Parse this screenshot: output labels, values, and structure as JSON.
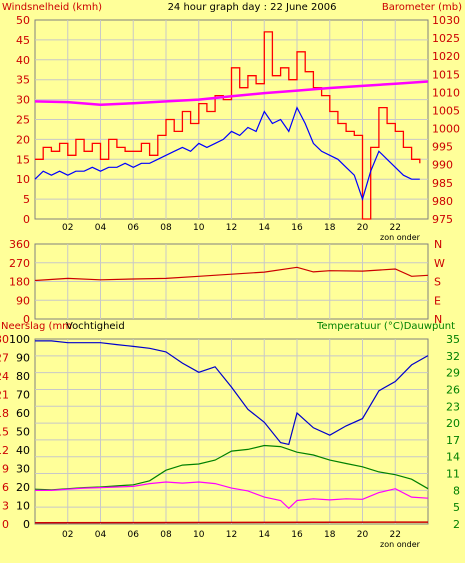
{
  "colors": {
    "background": "#ffff99",
    "plot_border": "#808080",
    "grid": "#c8c8c8",
    "wind_gust": "#ff0000",
    "wind_avg": "#0000ff",
    "barometer": "#ff00ff",
    "direction": "#cc0000",
    "rain": "#cc0000",
    "humidity": "#0000cc",
    "temperature": "#008000",
    "dewpoint": "#ff00ff",
    "label_red": "#cc0000",
    "label_green": "#008000",
    "label_black": "#000000"
  },
  "header": {
    "left_label": "Windsnelheid (kmh)",
    "title": "24 hour graph day : 22 June 2006",
    "right_label": "Barometer (mb)"
  },
  "x_axis": {
    "ticks": [
      "02",
      "04",
      "06",
      "08",
      "10",
      "12",
      "14",
      "16",
      "18",
      "20",
      "22"
    ],
    "note": "zon onder"
  },
  "chart_data": [
    {
      "type": "line",
      "panel": "wind",
      "xlim": [
        0,
        24
      ],
      "y_left": {
        "label": "Windsnelheid (kmh)",
        "ylim": [
          0,
          50
        ],
        "ticks": [
          "0",
          "5",
          "10",
          "15",
          "20",
          "25",
          "30",
          "35",
          "40",
          "45",
          "50"
        ]
      },
      "y_right": {
        "label": "Barometer (mb)",
        "ylim": [
          975,
          1030
        ],
        "ticks": [
          "975",
          "980",
          "985",
          "990",
          "995",
          "1000",
          "1005",
          "1010",
          "1015",
          "1020",
          "1025",
          "1030"
        ]
      },
      "series": [
        {
          "key": "gust",
          "axis": "left",
          "x": [
            0.0,
            0.5,
            1.0,
            1.5,
            2.0,
            2.5,
            3.0,
            3.5,
            4.0,
            4.5,
            5.0,
            5.5,
            6.0,
            6.5,
            7.0,
            7.5,
            8.0,
            8.5,
            9.0,
            9.5,
            10.0,
            10.5,
            11.0,
            11.5,
            12.0,
            12.5,
            13.0,
            13.5,
            14.0,
            14.5,
            15.0,
            15.5,
            16.0,
            16.5,
            17.0,
            17.5,
            18.0,
            18.5,
            19.0,
            19.5,
            20.0,
            20.5,
            21.0,
            21.5,
            22.0,
            22.5,
            23.0,
            23.5
          ],
          "values": [
            15,
            18,
            17,
            19,
            16,
            20,
            17,
            19,
            15,
            20,
            18,
            17,
            17,
            19,
            16,
            21,
            25,
            22,
            27,
            24,
            29,
            27,
            31,
            30,
            38,
            33,
            36,
            34,
            47,
            36,
            38,
            35,
            42,
            37,
            33,
            31,
            27,
            24,
            22,
            21,
            0,
            18,
            28,
            24,
            22,
            18,
            15,
            14
          ]
        },
        {
          "key": "average",
          "axis": "left",
          "x": [
            0.0,
            0.5,
            1.0,
            1.5,
            2.0,
            2.5,
            3.0,
            3.5,
            4.0,
            4.5,
            5.0,
            5.5,
            6.0,
            6.5,
            7.0,
            7.5,
            8.0,
            8.5,
            9.0,
            9.5,
            10.0,
            10.5,
            11.0,
            11.5,
            12.0,
            12.5,
            13.0,
            13.5,
            14.0,
            14.5,
            15.0,
            15.5,
            16.0,
            16.5,
            17.0,
            17.5,
            18.0,
            18.5,
            19.0,
            19.5,
            20.0,
            20.5,
            21.0,
            21.5,
            22.0,
            22.5,
            23.0,
            23.5
          ],
          "values": [
            10,
            12,
            11,
            12,
            11,
            12,
            12,
            13,
            12,
            13,
            13,
            14,
            13,
            14,
            14,
            15,
            16,
            17,
            18,
            17,
            19,
            18,
            19,
            20,
            22,
            21,
            23,
            22,
            27,
            24,
            25,
            22,
            28,
            24,
            19,
            17,
            16,
            15,
            13,
            11,
            5,
            12,
            17,
            15,
            13,
            11,
            10,
            10
          ]
        },
        {
          "key": "barometer",
          "axis": "right",
          "x": [
            0,
            2,
            4,
            6,
            8,
            10,
            12,
            14,
            16,
            18,
            20,
            22,
            24
          ],
          "values": [
            1007.5,
            1007.3,
            1006.6,
            1007.0,
            1007.5,
            1008.0,
            1008.9,
            1009.8,
            1010.5,
            1011.2,
            1011.8,
            1012.4,
            1013.0
          ]
        }
      ]
    },
    {
      "type": "line",
      "panel": "wind_direction",
      "xlim": [
        0,
        24
      ],
      "y_left": {
        "ylim": [
          0,
          360
        ],
        "ticks": [
          "0",
          "90",
          "180",
          "270",
          "360"
        ]
      },
      "y_right": {
        "compass": [
          "N",
          "E",
          "S",
          "W",
          "N"
        ]
      },
      "series": [
        {
          "key": "direction",
          "x": [
            0,
            2,
            4,
            6,
            8,
            10,
            12,
            14,
            16,
            17,
            18,
            20,
            22,
            23,
            24
          ],
          "values": [
            185,
            195,
            188,
            192,
            195,
            205,
            215,
            225,
            248,
            226,
            232,
            230,
            240,
            205,
            210
          ]
        }
      ]
    },
    {
      "type": "line",
      "panel": "rain_humidity_temp",
      "xlim": [
        0,
        24
      ],
      "y_left_outer": {
        "label": "Neerslag (mm",
        "ylim": [
          0,
          30
        ],
        "ticks": [
          "0",
          "3",
          "6",
          "9",
          "12",
          "15",
          "18",
          "21",
          "24",
          "27",
          "30"
        ]
      },
      "y_left_inner": {
        "label": "Vochtigheid",
        "ylim": [
          0,
          100
        ],
        "ticks": [
          "0",
          "10",
          "20",
          "30",
          "40",
          "50",
          "60",
          "70",
          "80",
          "90",
          "100"
        ]
      },
      "y_right_label": "Temperatuur (°C)Dauwpunt",
      "y_right": {
        "ylim": [
          2,
          35
        ],
        "ticks": [
          "2",
          "5",
          "8",
          "11",
          "14",
          "17",
          "20",
          "23",
          "26",
          "29",
          "32",
          "35"
        ]
      },
      "series": [
        {
          "key": "rain",
          "axis": "left_outer",
          "x": [
            0,
            24
          ],
          "values": [
            0.2,
            0.3
          ]
        },
        {
          "key": "humidity",
          "axis": "left_inner",
          "x": [
            0,
            1,
            2,
            3,
            4,
            5,
            6,
            7,
            8,
            9,
            10,
            11,
            12,
            13,
            14,
            15,
            15.5,
            16,
            17,
            18,
            19,
            20,
            21,
            22,
            23,
            24
          ],
          "values": [
            99,
            99,
            98,
            98,
            98,
            97,
            96,
            95,
            93,
            87,
            82,
            85,
            74,
            62,
            55,
            44,
            43,
            60,
            52,
            48,
            53,
            57,
            72,
            77,
            86,
            91
          ]
        },
        {
          "key": "temperature",
          "axis": "right",
          "x": [
            0,
            1,
            2,
            3,
            4,
            5,
            6,
            7,
            8,
            9,
            10,
            11,
            12,
            13,
            14,
            15,
            16,
            17,
            18,
            19,
            20,
            21,
            22,
            23,
            24
          ],
          "values": [
            8.2,
            8.1,
            8.3,
            8.5,
            8.6,
            8.8,
            9.0,
            9.7,
            11.6,
            12.5,
            12.7,
            13.4,
            15.0,
            15.3,
            16.0,
            15.8,
            14.8,
            14.3,
            13.4,
            12.8,
            12.2,
            11.3,
            10.8,
            10.0,
            8.3
          ]
        },
        {
          "key": "dewpoint",
          "axis": "right",
          "x": [
            0,
            1,
            2,
            3,
            4,
            5,
            6,
            7,
            8,
            9,
            10,
            11,
            12,
            13,
            14,
            15,
            15.5,
            16,
            17,
            18,
            19,
            20,
            21,
            22,
            23,
            24
          ],
          "values": [
            8.0,
            8.0,
            8.2,
            8.4,
            8.5,
            8.6,
            8.7,
            9.2,
            9.5,
            9.3,
            9.5,
            9.2,
            8.4,
            7.9,
            6.8,
            6.2,
            4.8,
            6.2,
            6.5,
            6.3,
            6.5,
            6.4,
            7.6,
            8.3,
            6.8,
            6.6
          ]
        }
      ]
    }
  ]
}
